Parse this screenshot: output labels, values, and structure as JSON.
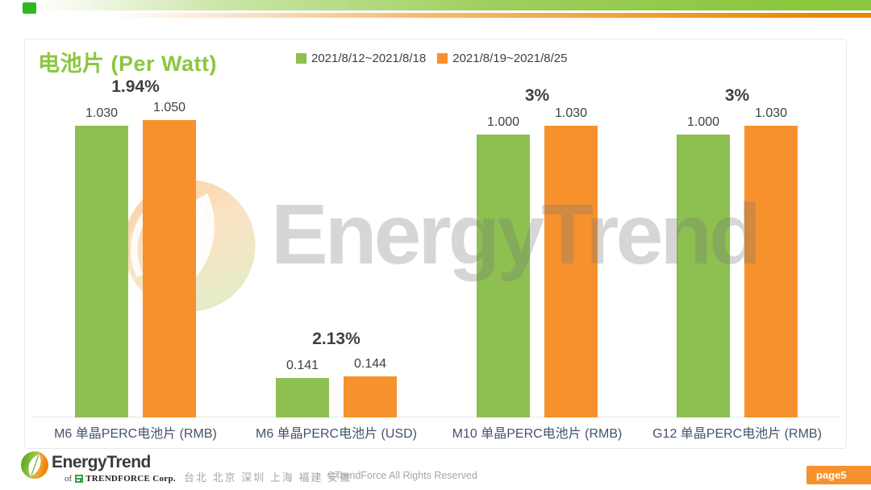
{
  "page": {
    "title": "电池片 (Per Watt)",
    "page_badge": "page5"
  },
  "chart_data": {
    "type": "bar",
    "title": "电池片 (Per Watt)",
    "legend_position": "top",
    "grid": false,
    "ylim": [
      0,
      1.25
    ],
    "series": [
      {
        "name": "2021/8/12~2021/8/18",
        "color": "#8dc050"
      },
      {
        "name": "2021/8/19~2021/8/25",
        "color": "#f6912d"
      }
    ],
    "groups": [
      {
        "category": "M6 单晶PERC电池片 (RMB)",
        "values": [
          1.03,
          1.05
        ],
        "value_labels": [
          "1.030",
          "1.050"
        ],
        "change": "1.94%"
      },
      {
        "category": "M6 单晶PERC电池片 (USD)",
        "values": [
          0.141,
          0.144
        ],
        "value_labels": [
          "0.141",
          "0.144"
        ],
        "change": "2.13%"
      },
      {
        "category": "M10 单晶PERC电池片 (RMB)",
        "values": [
          1.0,
          1.03
        ],
        "value_labels": [
          "1.000",
          "1.030"
        ],
        "change": "3%"
      },
      {
        "category": "G12 单晶PERC电池片 (RMB)",
        "values": [
          1.0,
          1.03
        ],
        "value_labels": [
          "1.000",
          "1.030"
        ],
        "change": "3%"
      }
    ]
  },
  "watermark": {
    "text": "EnergyTrend"
  },
  "footer": {
    "brand": "EnergyTrend",
    "brand_sub_prefix": "of",
    "brand_sub": "TRENDFORCE Corp.",
    "locations": "台北 北京 深圳 上海 福建 安徽",
    "copyright": "©TrendForce All Rights Reserved"
  },
  "colors": {
    "title_green": "#8cc63f",
    "ribbon_green": "#8dc63f",
    "ribbon_orange": "#f08300",
    "badge_orange": "#f6912d",
    "text_dark": "#404040",
    "category_text": "#44546a"
  }
}
